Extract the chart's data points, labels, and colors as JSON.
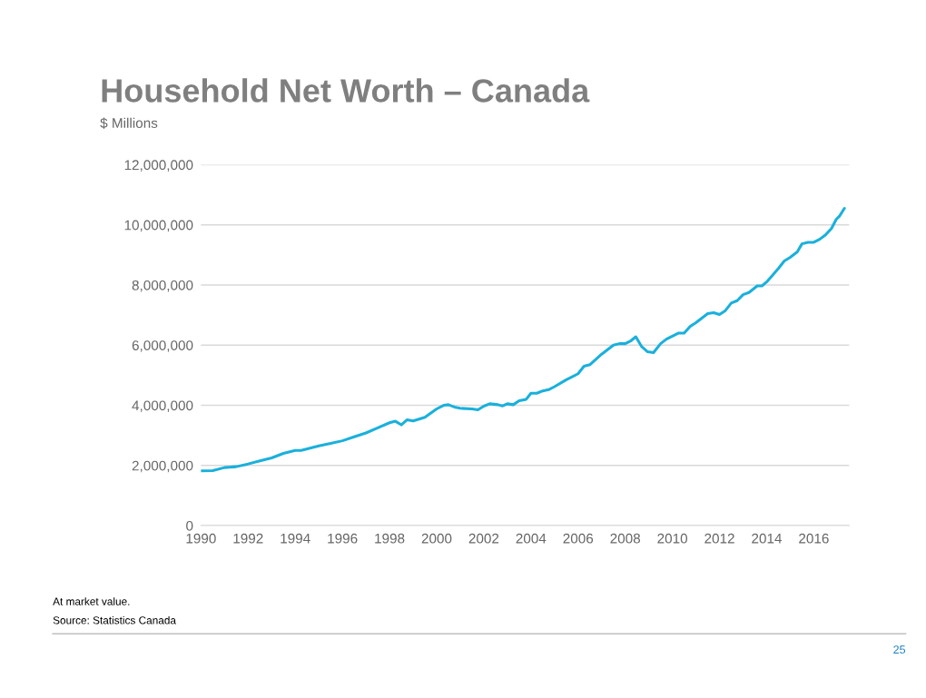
{
  "chart_data": {
    "type": "line",
    "title": "Household Net Worth – Canada",
    "ylabel": "$ Millions",
    "annotations": [
      "At market value.",
      "Source: Statistics Canada",
      "25"
    ],
    "series": [
      {
        "color": "#1ab0dc",
        "x": [
          1990,
          1990.5,
          1991,
          1991.5,
          1992,
          1992.5,
          1993,
          1993.5,
          1994,
          1994.25,
          1995,
          1995.5,
          1996,
          1996.5,
          1997,
          1997.5,
          1998,
          1998.25,
          1998.5,
          1998.75,
          1999,
          1999.5,
          2000,
          2000.3,
          2000.5,
          2000.8,
          2001,
          2001.5,
          2001.75,
          2002,
          2002.25,
          2002.6,
          2002.8,
          2003,
          2003.25,
          2003.5,
          2003.8,
          2004,
          2004.25,
          2004.5,
          2004.75,
          2005,
          2005.5,
          2005.75,
          2006,
          2006.25,
          2006.5,
          2007,
          2007.5,
          2007.75,
          2008,
          2008.25,
          2008.45,
          2008.7,
          2008.95,
          2009.2,
          2009.5,
          2009.75,
          2010,
          2010.25,
          2010.5,
          2010.75,
          2011,
          2011.5,
          2011.75,
          2012,
          2012.25,
          2012.5,
          2012.75,
          2013,
          2013.25,
          2013.6,
          2013.8,
          2014,
          2014.5,
          2014.75,
          2015,
          2015.3,
          2015.5,
          2015.75,
          2016,
          2016.25,
          2016.5,
          2016.75,
          2016.95,
          2017.1,
          2017.3
        ],
        "values": [
          1820000,
          1830000,
          1930000,
          1960000,
          2050000,
          2150000,
          2250000,
          2400000,
          2500000,
          2500000,
          2650000,
          2730000,
          2820000,
          2950000,
          3080000,
          3250000,
          3420000,
          3470000,
          3350000,
          3520000,
          3480000,
          3600000,
          3880000,
          4000000,
          4020000,
          3930000,
          3900000,
          3880000,
          3850000,
          3970000,
          4050000,
          4020000,
          3980000,
          4050000,
          4020000,
          4150000,
          4200000,
          4400000,
          4400000,
          4480000,
          4520000,
          4620000,
          4850000,
          4950000,
          5050000,
          5300000,
          5350000,
          5700000,
          6000000,
          6050000,
          6050000,
          6150000,
          6280000,
          5950000,
          5780000,
          5750000,
          6050000,
          6200000,
          6300000,
          6400000,
          6400000,
          6620000,
          6750000,
          7050000,
          7080000,
          7020000,
          7150000,
          7400000,
          7480000,
          7680000,
          7750000,
          7970000,
          7970000,
          8100000,
          8550000,
          8800000,
          8920000,
          9100000,
          9370000,
          9420000,
          9420000,
          9520000,
          9670000,
          9880000,
          10180000,
          10300000,
          10550000
        ]
      }
    ],
    "xlim": [
      1990,
      2017.5
    ],
    "xticks": [
      1990,
      1992,
      1994,
      1996,
      1998,
      2000,
      2002,
      2004,
      2006,
      2008,
      2010,
      2012,
      2014,
      2016
    ],
    "ylim": [
      0,
      12000000
    ],
    "yticks": [
      {
        "value": 0,
        "label": "0"
      },
      {
        "value": 2000000,
        "label": "2,000,000"
      },
      {
        "value": 4000000,
        "label": "4,000,000"
      },
      {
        "value": 6000000,
        "label": "6,000,000"
      },
      {
        "value": 8000000,
        "label": "8,000,000"
      },
      {
        "value": 10000000,
        "label": "10,000,000"
      },
      {
        "value": 12000000,
        "label": "12,000,000"
      }
    ],
    "grid": "y",
    "legend": false
  }
}
